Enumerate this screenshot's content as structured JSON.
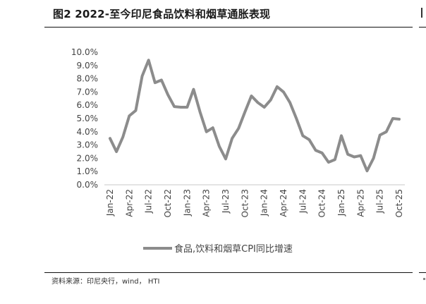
{
  "figure": {
    "title": "图2  2022-至今印尼食品饮料和烟草通胀表现",
    "source": "资料来源：印尼央行，wind， HTI"
  },
  "chart_data": {
    "type": "line",
    "title": "",
    "xlabel": "",
    "ylabel": "",
    "ylim": [
      0,
      10
    ],
    "y_ticks": [
      "0.0%",
      "1.0%",
      "2.0%",
      "3.0%",
      "4.0%",
      "5.0%",
      "6.0%",
      "7.0%",
      "8.0%",
      "9.0%",
      "10.0%"
    ],
    "x_tick_labels": [
      "Jan-22",
      "Apr-22",
      "Jul-22",
      "Oct-22",
      "Jan-23",
      "Apr-23",
      "Jul-23",
      "Oct-23",
      "Jan-24",
      "Apr-24",
      "Jul-24",
      "Oct-24",
      "Jan-25",
      "Apr-25",
      "Jul-25",
      "Oct-25"
    ],
    "x": [
      "Jan-22",
      "Feb-22",
      "Mar-22",
      "Apr-22",
      "May-22",
      "Jun-22",
      "Jul-22",
      "Aug-22",
      "Sep-22",
      "Oct-22",
      "Nov-22",
      "Dec-22",
      "Jan-23",
      "Feb-23",
      "Mar-23",
      "Apr-23",
      "May-23",
      "Jun-23",
      "Jul-23",
      "Aug-23",
      "Sep-23",
      "Oct-23",
      "Nov-23",
      "Dec-23",
      "Jan-24",
      "Feb-24",
      "Mar-24",
      "Apr-24",
      "May-24",
      "Jun-24",
      "Jul-24",
      "Aug-24",
      "Sep-24",
      "Oct-24",
      "Nov-24",
      "Dec-24",
      "Jan-25",
      "Feb-25",
      "Mar-25",
      "Apr-25",
      "May-25",
      "Jun-25",
      "Jul-25",
      "Aug-25",
      "Sep-25",
      "Oct-25"
    ],
    "series": [
      {
        "name": "食品,饮料和烟草CPI同比增速",
        "color": "#8c8c8c",
        "values": [
          3.5,
          2.5,
          3.6,
          5.2,
          5.6,
          8.2,
          9.4,
          7.7,
          7.9,
          6.8,
          5.9,
          5.85,
          5.85,
          7.2,
          5.5,
          4.0,
          4.3,
          2.9,
          1.95,
          3.5,
          4.25,
          5.5,
          6.7,
          6.2,
          5.85,
          6.4,
          7.4,
          7.0,
          6.2,
          5.0,
          3.7,
          3.4,
          2.6,
          2.4,
          1.7,
          1.9,
          3.7,
          2.3,
          2.1,
          2.2,
          1.05,
          2.0,
          3.75,
          4.0,
          5.0,
          4.95
        ]
      }
    ],
    "grid": false,
    "legend_position": "bottom"
  }
}
